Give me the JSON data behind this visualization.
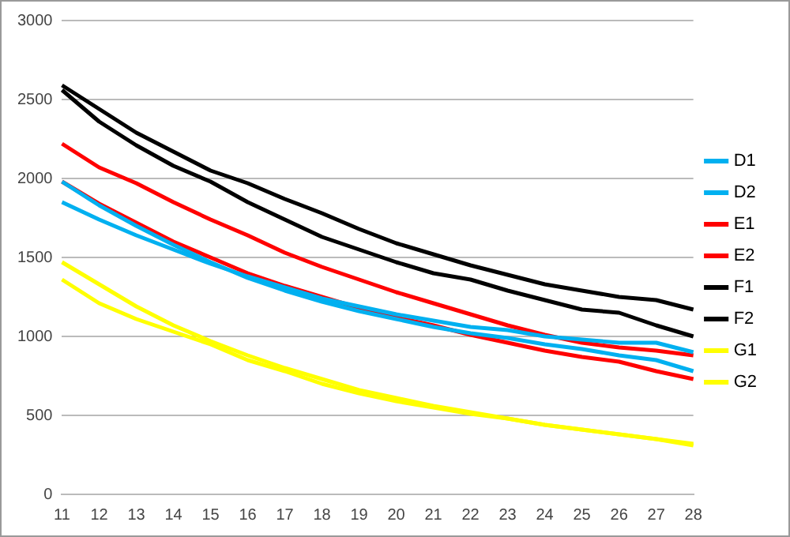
{
  "chart_data": {
    "type": "line",
    "categories": [
      "11",
      "12",
      "13",
      "14",
      "15",
      "16",
      "17",
      "18",
      "19",
      "20",
      "21",
      "22",
      "23",
      "24",
      "25",
      "26",
      "27",
      "28"
    ],
    "series": [
      {
        "name": "D1",
        "color": "#00b0f0",
        "values": [
          1850,
          1740,
          1640,
          1550,
          1460,
          1380,
          1310,
          1240,
          1190,
          1140,
          1100,
          1060,
          1040,
          1000,
          980,
          960,
          960,
          900
        ]
      },
      {
        "name": "D2",
        "color": "#00b0f0",
        "values": [
          1980,
          1830,
          1700,
          1580,
          1470,
          1370,
          1290,
          1220,
          1160,
          1110,
          1060,
          1020,
          990,
          950,
          920,
          880,
          850,
          780
        ]
      },
      {
        "name": "E1",
        "color": "#ff0000",
        "values": [
          2220,
          2070,
          1970,
          1850,
          1740,
          1640,
          1530,
          1440,
          1360,
          1280,
          1210,
          1140,
          1070,
          1010,
          960,
          930,
          910,
          880
        ]
      },
      {
        "name": "E2",
        "color": "#ff0000",
        "values": [
          1980,
          1840,
          1720,
          1600,
          1500,
          1400,
          1320,
          1250,
          1180,
          1120,
          1070,
          1010,
          960,
          910,
          870,
          840,
          780,
          730
        ]
      },
      {
        "name": "F1",
        "color": "#000000",
        "values": [
          2590,
          2440,
          2290,
          2170,
          2050,
          1970,
          1870,
          1780,
          1680,
          1590,
          1520,
          1450,
          1390,
          1330,
          1290,
          1250,
          1230,
          1170
        ]
      },
      {
        "name": "F2",
        "color": "#000000",
        "values": [
          2560,
          2360,
          2210,
          2080,
          1980,
          1850,
          1740,
          1630,
          1550,
          1470,
          1400,
          1360,
          1290,
          1230,
          1170,
          1150,
          1070,
          1000
        ]
      },
      {
        "name": "G1",
        "color": "#ffff00",
        "values": [
          1470,
          1330,
          1190,
          1070,
          970,
          880,
          800,
          730,
          660,
          610,
          560,
          520,
          480,
          440,
          410,
          380,
          350,
          320
        ]
      },
      {
        "name": "G2",
        "color": "#ffff00",
        "values": [
          1360,
          1210,
          1110,
          1030,
          950,
          850,
          780,
          700,
          640,
          590,
          550,
          510,
          480,
          440,
          410,
          380,
          350,
          310
        ]
      }
    ],
    "ylim": [
      0,
      3000
    ],
    "yticks": [
      0,
      500,
      1000,
      1500,
      2000,
      2500,
      3000
    ],
    "grid": "y",
    "legend": "right",
    "marker": "none",
    "line_style": "solid"
  }
}
